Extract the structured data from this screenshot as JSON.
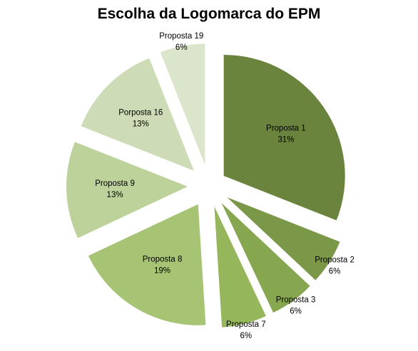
{
  "chart_data": {
    "type": "pie",
    "title": "Escolha da Logomarca do EPM",
    "slices": [
      {
        "name": "Proposta 1",
        "value": 31,
        "label": "31%",
        "color": "#6b843d"
      },
      {
        "name": "Proposta 2",
        "value": 6,
        "label": "6%",
        "color": "#7a9847"
      },
      {
        "name": "Proposta 3",
        "value": 6,
        "label": "6%",
        "color": "#87a650"
      },
      {
        "name": "Proposta 7",
        "value": 6,
        "label": "6%",
        "color": "#96b65b"
      },
      {
        "name": "Proposta 8",
        "value": 19,
        "label": "19%",
        "color": "#a6c473"
      },
      {
        "name": "Proposta 9",
        "value": 13,
        "label": "13%",
        "color": "#bcd29a"
      },
      {
        "name": "Porposta 16",
        "value": 13,
        "label": "13%",
        "color": "#cddcb6"
      },
      {
        "name": "Proposta 19",
        "value": 6,
        "label": "6%",
        "color": "#dbe5cb"
      }
    ],
    "legend": "none"
  }
}
